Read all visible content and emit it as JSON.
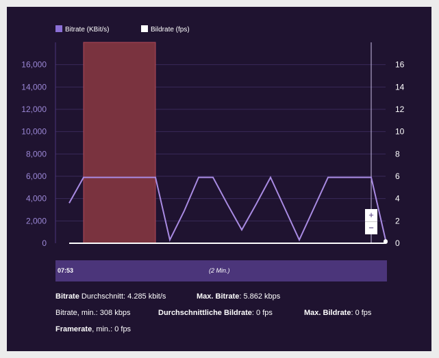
{
  "legend": {
    "bitrate": "Bitrate (KBit/s)",
    "framerate": "Bildrate (fps)"
  },
  "colors": {
    "background": "#1f1330",
    "bitrate_series": "#8b6fd6",
    "highlight_band": "#7a333f",
    "framerate_series": "#ffffff",
    "timeline": "#4b357a"
  },
  "chart_data": {
    "type": "line",
    "title": "",
    "series": [
      {
        "name": "Bitrate (KBit/s)",
        "axis": "left",
        "color": "#a98be3",
        "x": [
          0,
          1,
          2,
          3,
          4,
          5,
          6,
          7,
          8,
          9,
          10,
          11,
          12,
          13,
          14,
          15,
          16,
          17,
          18,
          19,
          20,
          21,
          22
        ],
        "values": [
          3600,
          5900,
          5900,
          5900,
          5900,
          5900,
          5900,
          300,
          2900,
          5900,
          5900,
          3500,
          1200,
          3500,
          5900,
          3100,
          300,
          3100,
          5900,
          5900,
          5900,
          5900,
          300
        ]
      },
      {
        "name": "Bildrate (fps)",
        "axis": "right",
        "color": "#ffffff",
        "x": [
          0,
          1,
          2,
          3,
          4,
          5,
          6,
          7,
          8,
          9,
          10,
          11,
          12,
          13,
          14,
          15,
          16,
          17,
          18,
          19,
          20,
          21,
          22
        ],
        "values": [
          0,
          0,
          0,
          0,
          0,
          0,
          0,
          0,
          0,
          0,
          0,
          0,
          0,
          0,
          0,
          0,
          0,
          0,
          0,
          0,
          0,
          0,
          0
        ]
      }
    ],
    "highlight_range": [
      1,
      6
    ],
    "cursor_x": 21,
    "left_axis": {
      "ticks": [
        "0",
        "2,000",
        "4,000",
        "6,000",
        "8,000",
        "10,000",
        "12,000",
        "14,000",
        "16,000"
      ],
      "ylim": [
        0,
        18000
      ]
    },
    "right_axis": {
      "ticks": [
        "0",
        "2",
        "4",
        "6",
        "8",
        "10",
        "12",
        "14",
        "16"
      ],
      "ylim": [
        0,
        18
      ]
    },
    "xlim": [
      0,
      22
    ],
    "grid": true
  },
  "timeline": {
    "start": "07:53",
    "range": "(2 Min.)"
  },
  "zoom": {
    "in": "+",
    "out": "−"
  },
  "stats": {
    "avg_bitrate_label": "Bitrate",
    "avg_bitrate_text": " Durchschnitt: 4.285 kbit/s",
    "max_bitrate_label": "Max. Bitrate",
    "max_bitrate_text": ": 5.862 kbps",
    "min_bitrate_text": "Bitrate, min.: 308 kbps",
    "avg_framerate_label": "Durchschnittliche Bildrate",
    "avg_framerate_text": ": 0 fps",
    "max_framerate_label": "Max. Bildrate",
    "max_framerate_text": ": 0 fps",
    "min_framerate_label": "Framerate",
    "min_framerate_text": ", min.: 0 fps"
  }
}
